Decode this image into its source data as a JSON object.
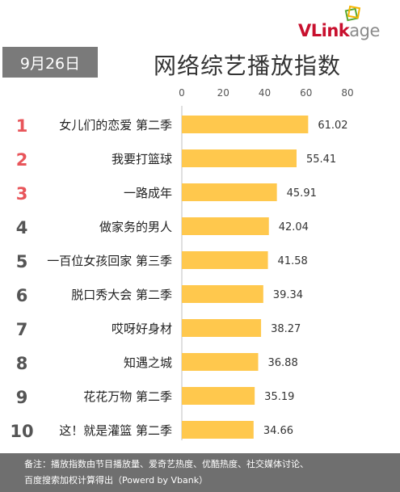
{
  "brand": {
    "logo_text_accent": "VLink",
    "logo_text_rest": "age",
    "logo_icon": "stacked-squares-icon",
    "accent_color": "#c8102e",
    "mark_colors": [
      "#f5b400",
      "#5aa832"
    ]
  },
  "header": {
    "date": "9月26日"
  },
  "footnote": {
    "line1": "备注：播放指数由节目播放量、爱奇艺热度、优酷热度、社交媒体讨论、",
    "line2": "百度搜索加权计算得出（Powerd by Vbank）"
  },
  "chart_data": {
    "type": "bar",
    "orientation": "horizontal",
    "title": "网络综艺播放指数",
    "xlabel": "",
    "ylabel": "",
    "xlim": [
      0,
      80
    ],
    "x_ticks": [
      0,
      20,
      40,
      60,
      80
    ],
    "x_axis_position": "top",
    "grid": false,
    "bar_color": "#ffc84d",
    "rank_colors": {
      "top3": "#e8555a",
      "rest": "#555555"
    },
    "ranks": [
      "1",
      "2",
      "3",
      "4",
      "5",
      "6",
      "7",
      "8",
      "9",
      "10"
    ],
    "categories": [
      "女儿们的恋爱 第二季",
      "我要打篮球",
      "一路成年",
      "做家务的男人",
      "一百位女孩回家 第三季",
      "脱口秀大会 第二季",
      "哎呀好身材",
      "知遇之城",
      "花花万物 第二季",
      "这！就是灌篮 第二季"
    ],
    "values": [
      61.02,
      55.41,
      45.91,
      42.04,
      41.58,
      39.34,
      38.27,
      36.88,
      35.19,
      34.66
    ],
    "value_labels": [
      "61.02",
      "55.41",
      "45.91",
      "42.04",
      "41.58",
      "39.34",
      "38.27",
      "36.88",
      "35.19",
      "34.66"
    ]
  }
}
